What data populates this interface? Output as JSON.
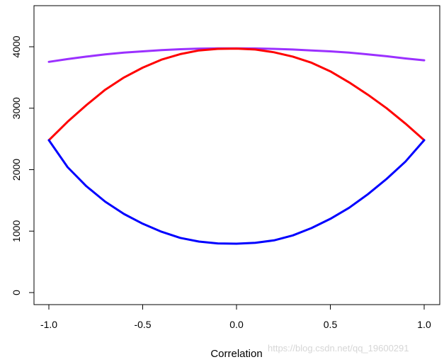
{
  "chart_data": {
    "type": "line",
    "title": "",
    "xlabel": "Correlation",
    "ylabel": "",
    "xlim": [
      -1.0,
      1.0
    ],
    "ylim": [
      0,
      4550
    ],
    "x_ticks": [
      -1.0,
      -0.5,
      0.0,
      0.5,
      1.0
    ],
    "x_tick_labels": [
      "-1.0",
      "-0.5",
      "0.0",
      "0.5",
      "1.0"
    ],
    "y_ticks": [
      0,
      1000,
      2000,
      3000,
      4000
    ],
    "y_tick_labels": [
      "0",
      "1000",
      "2000",
      "3000",
      "4000"
    ],
    "grid": false,
    "legend": "none",
    "x": [
      -1.0,
      -0.9,
      -0.8,
      -0.7,
      -0.6,
      -0.5,
      -0.4,
      -0.3,
      -0.2,
      -0.1,
      0.0,
      0.1,
      0.2,
      0.3,
      0.4,
      0.5,
      0.6,
      0.7,
      0.8,
      0.9,
      1.0
    ],
    "series": [
      {
        "color": "#9b30ff",
        "values": [
          3755,
          3800,
          3840,
          3875,
          3905,
          3925,
          3945,
          3960,
          3970,
          3975,
          3975,
          3972,
          3965,
          3955,
          3940,
          3925,
          3905,
          3875,
          3845,
          3810,
          3780
        ]
      },
      {
        "color": "#ff0000",
        "values": [
          2480,
          2780,
          3050,
          3300,
          3500,
          3660,
          3790,
          3880,
          3940,
          3965,
          3970,
          3955,
          3910,
          3840,
          3740,
          3600,
          3420,
          3220,
          3000,
          2750,
          2480
        ]
      },
      {
        "color": "#0000ff",
        "values": [
          2480,
          2040,
          1730,
          1480,
          1280,
          1120,
          990,
          890,
          830,
          800,
          795,
          810,
          850,
          930,
          1050,
          1200,
          1380,
          1600,
          1850,
          2130,
          2480
        ]
      }
    ]
  },
  "watermark": "https://blog.csdn.net/qq_19600291"
}
